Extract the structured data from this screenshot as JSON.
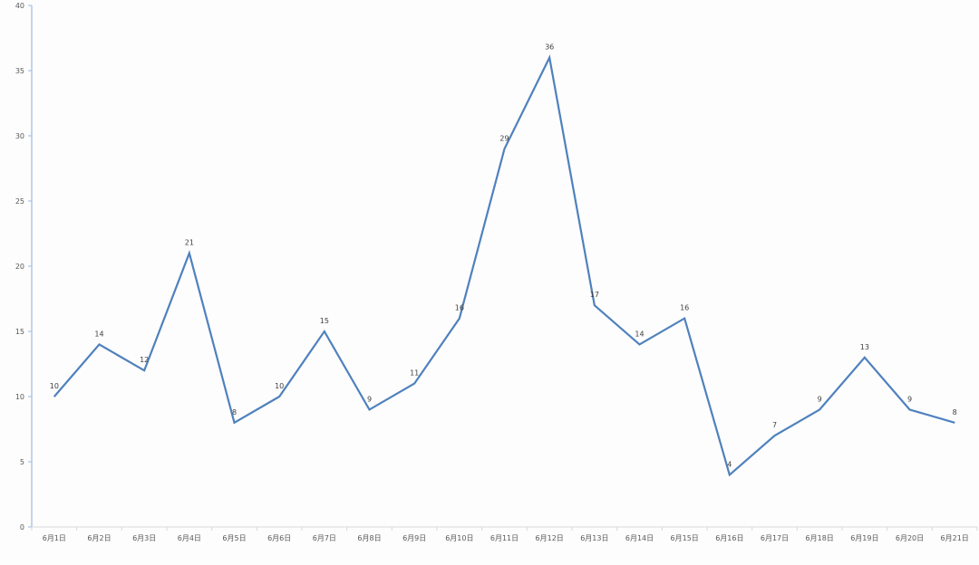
{
  "chart_data": {
    "type": "line",
    "title": "",
    "xlabel": "",
    "ylabel": "",
    "categories": [
      "6月1日",
      "6月2日",
      "6月3日",
      "6月4日",
      "6月5日",
      "6月6日",
      "6月7日",
      "6月8日",
      "6月9日",
      "6月10日",
      "6月11日",
      "6月12日",
      "6月13日",
      "6月14日",
      "6月15日",
      "6月16日",
      "6月17日",
      "6月18日",
      "6月19日",
      "6月20日",
      "6月21日"
    ],
    "values": [
      10,
      14,
      12,
      21,
      8,
      10,
      15,
      9,
      11,
      16,
      29,
      36,
      17,
      14,
      16,
      4,
      7,
      9,
      13,
      9,
      8
    ],
    "ylim": [
      0,
      40
    ],
    "yticks": [
      0,
      5,
      10,
      15,
      20,
      25,
      30,
      35,
      40
    ],
    "grid": false,
    "legend": "none",
    "data_labels": true,
    "colors": {
      "line": "#4f81bd",
      "y_axis": "#9dbbe0",
      "x_axis": "#d9d9d9"
    }
  }
}
